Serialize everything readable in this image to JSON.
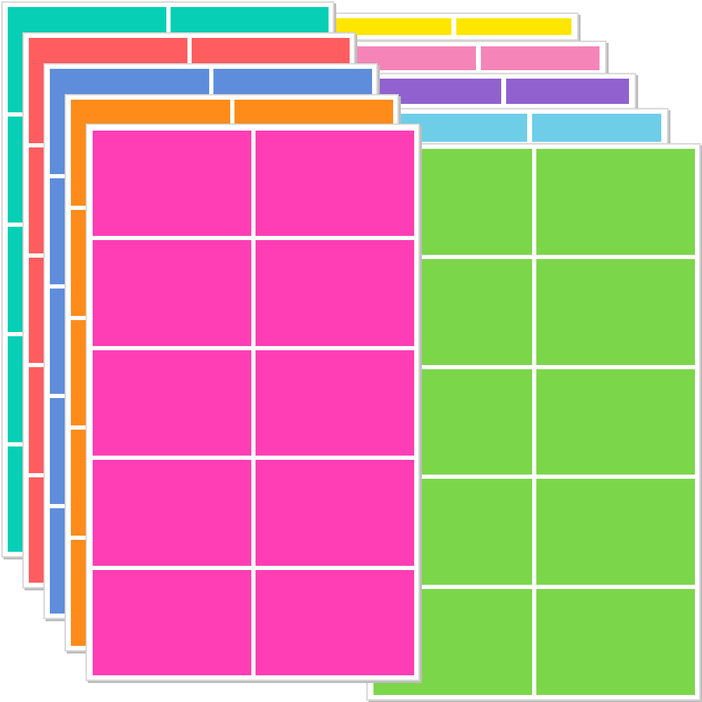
{
  "sheets": [
    {
      "id": "yellow",
      "color": "#FFE600"
    },
    {
      "id": "pink",
      "color": "#F585B8"
    },
    {
      "id": "purple",
      "color": "#9061CF"
    },
    {
      "id": "light-blue",
      "color": "#6ECEE8"
    },
    {
      "id": "green",
      "color": "#7CD64A"
    },
    {
      "id": "teal",
      "color": "#06CFB6"
    },
    {
      "id": "red",
      "color": "#FF5D5F"
    },
    {
      "id": "blue",
      "color": "#5E8EDB"
    },
    {
      "id": "orange",
      "color": "#FF8C1A"
    },
    {
      "id": "magenta",
      "color": "#FF3EB5"
    }
  ],
  "labels_per_sheet": 10
}
